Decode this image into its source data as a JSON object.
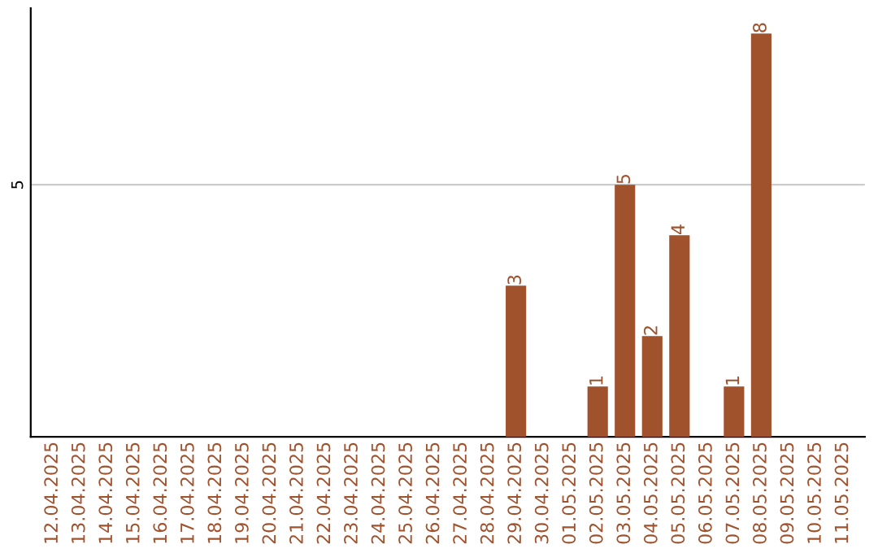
{
  "chart_data": {
    "type": "bar",
    "categories": [
      "12.04.2025",
      "13.04.2025",
      "14.04.2025",
      "15.04.2025",
      "16.04.2025",
      "17.04.2025",
      "18.04.2025",
      "19.04.2025",
      "20.04.2025",
      "21.04.2025",
      "22.04.2025",
      "23.04.2025",
      "24.04.2025",
      "25.04.2025",
      "26.04.2025",
      "27.04.2025",
      "28.04.2025",
      "29.04.2025",
      "30.04.2025",
      "01.05.2025",
      "02.05.2025",
      "03.05.2025",
      "04.05.2025",
      "05.05.2025",
      "06.05.2025",
      "07.05.2025",
      "08.05.2025",
      "09.05.2025",
      "10.05.2025",
      "11.05.2025"
    ],
    "values": [
      null,
      null,
      null,
      null,
      null,
      null,
      null,
      null,
      null,
      null,
      null,
      null,
      null,
      null,
      null,
      null,
      null,
      3,
      null,
      null,
      1,
      5,
      2,
      4,
      null,
      1,
      8,
      null,
      null,
      null
    ],
    "data_labels": true,
    "color": "#a0522d",
    "ylim": [
      0,
      8.5
    ],
    "yticks": [
      5
    ],
    "grid": "y"
  }
}
